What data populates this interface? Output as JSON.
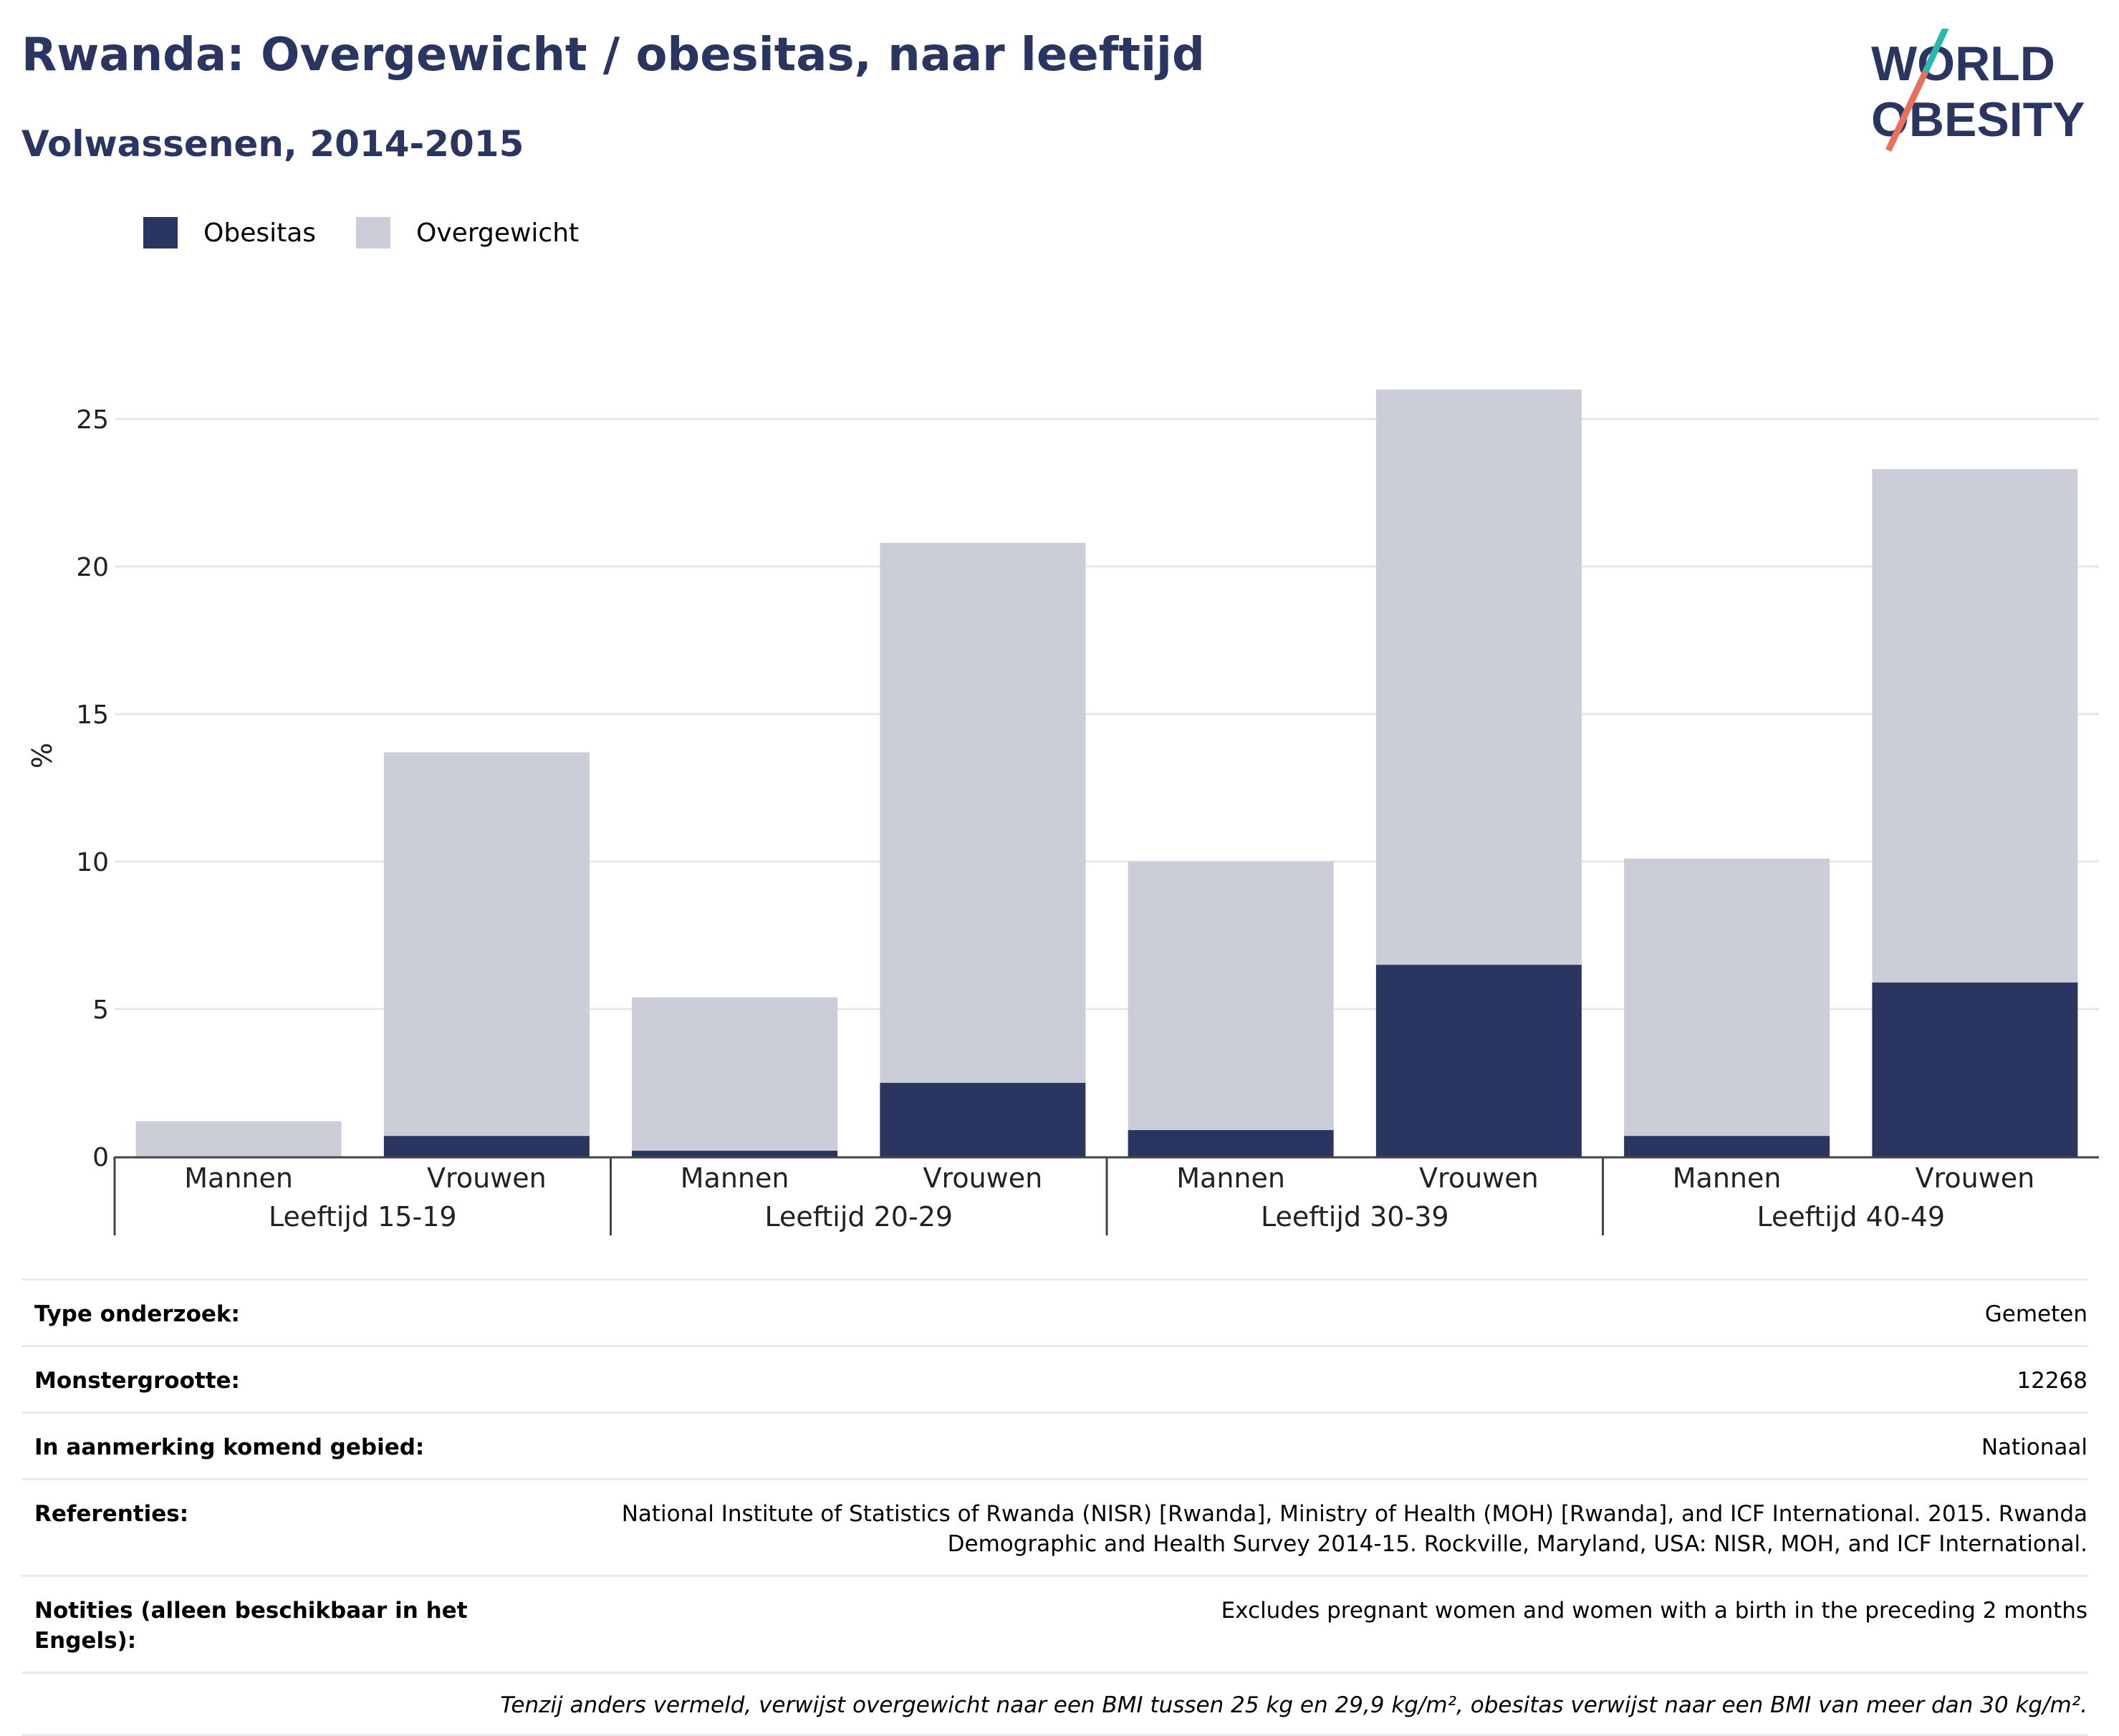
{
  "title": "Rwanda: Overgewicht / obesitas, naar leeftijd",
  "subtitle": "Volwassenen, 2014-2015",
  "logo": {
    "line1": "WORLD",
    "line2": "OBESITY"
  },
  "colors": {
    "obesitas": "#2a3561",
    "overgewicht": "#cbcdd8",
    "title": "#2a3561",
    "logo_teal": "#2ab7b0",
    "logo_coral": "#e8705c"
  },
  "legend": [
    {
      "label": "Obesitas",
      "color": "#2a3561"
    },
    {
      "label": "Overgewicht",
      "color": "#cbcdd8"
    }
  ],
  "chart_data": {
    "type": "bar",
    "stacked": true,
    "ylabel": "%",
    "ylim": [
      0,
      27
    ],
    "yticks": [
      0,
      5,
      10,
      15,
      20,
      25
    ],
    "grid": true,
    "legend_position": "top-left",
    "groups": [
      "Leeftijd 15-19",
      "Leeftijd 20-29",
      "Leeftijd 30-39",
      "Leeftijd 40-49"
    ],
    "categories": [
      "Mannen",
      "Vrouwen",
      "Mannen",
      "Vrouwen",
      "Mannen",
      "Vrouwen",
      "Mannen",
      "Vrouwen"
    ],
    "series": [
      {
        "name": "Obesitas",
        "values": [
          0.0,
          0.7,
          0.2,
          2.5,
          0.9,
          6.5,
          0.7,
          5.9
        ]
      },
      {
        "name": "Overgewicht",
        "values": [
          1.2,
          13.0,
          5.2,
          18.3,
          9.1,
          19.5,
          9.4,
          17.4
        ]
      }
    ]
  },
  "info": [
    {
      "key": "Type onderzoek:",
      "value": "Gemeten"
    },
    {
      "key": "Monstergrootte:",
      "value": "12268"
    },
    {
      "key": "In aanmerking komend gebied:",
      "value": "Nationaal"
    },
    {
      "key": "Referenties:",
      "value": "National Institute of Statistics of Rwanda (NISR) [Rwanda], Ministry of Health (MOH) [Rwanda], and ICF International. 2015. Rwanda Demographic and Health Survey 2014-15. Rockville, Maryland, USA: NISR, MOH, and ICF International."
    },
    {
      "key": "Notities (alleen beschikbaar in het Engels):",
      "value": "Excludes pregnant women and women with a birth in the preceding 2 months"
    }
  ],
  "footnote": "Tenzij anders vermeld, verwijst overgewicht naar een BMI tussen 25 kg en 29,9 kg/m², obesitas verwijst naar een BMI van meer dan 30 kg/m²."
}
